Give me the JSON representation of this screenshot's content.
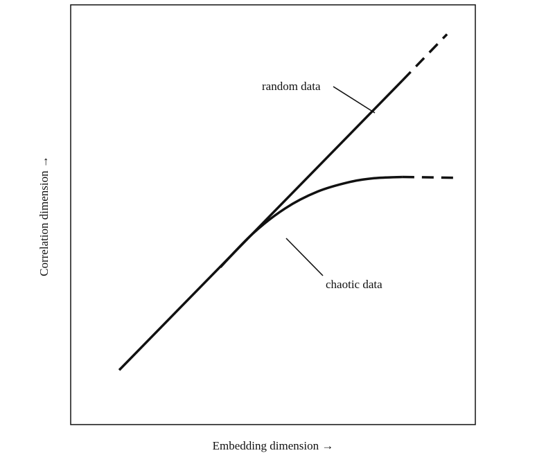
{
  "chart_data": {
    "type": "line",
    "title": "",
    "xlabel": "Embedding dimension →",
    "ylabel": "Correlation dimension →",
    "xlim": [
      0,
      10
    ],
    "ylim": [
      0,
      10
    ],
    "grid": false,
    "legend": "none",
    "series": [
      {
        "name": "random data",
        "solid": {
          "x": [
            1.2,
            8.2
          ],
          "y": [
            1.3,
            8.2
          ]
        },
        "dashed": {
          "x": [
            8.2,
            9.3
          ],
          "y": [
            8.2,
            9.3
          ]
        }
      },
      {
        "name": "chaotic data",
        "solid": {
          "x": [
            3.7,
            4.5,
            5.3,
            6.1,
            6.9,
            7.5,
            8.2
          ],
          "y": [
            3.75,
            4.55,
            5.15,
            5.55,
            5.78,
            5.87,
            5.9
          ]
        },
        "dashed": {
          "x": [
            8.2,
            9.5
          ],
          "y": [
            5.9,
            5.88
          ]
        }
      }
    ],
    "annotations": [
      {
        "text": "random data",
        "target": "random data"
      },
      {
        "text": "chaotic data",
        "target": "chaotic data"
      }
    ]
  }
}
